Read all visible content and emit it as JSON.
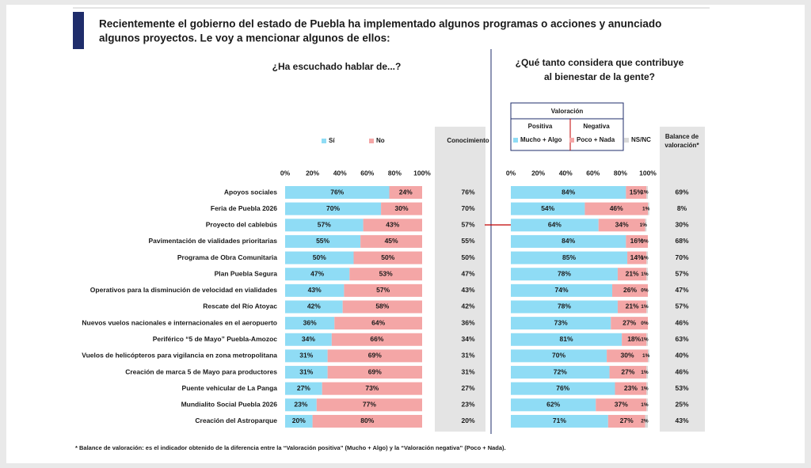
{
  "title": [
    "Recientemente el gobierno del estado de Puebla ha implementado algunos programas o acciones y anunciado",
    "algunos proyectos. Le voy a mencionar algunos de ellos:"
  ],
  "footnote": "* Balance de valoración: es el indicador obtenido de la diferencia entre la “Valoración positiva” (Mucho + Algo) y la “Valoración negativa” (Poco + Nada).",
  "chart_data": [
    {
      "type": "stacked-bar",
      "title": [
        "¿Ha escuchado hablar de...?"
      ],
      "categories": [
        "Apoyos sociales",
        "Feria de Puebla 2026",
        "Proyecto del cablebús",
        "Pavimentación de vialidades prioritarias",
        "Programa de Obra Comunitaria",
        "Plan Puebla Segura",
        "Operativos para la disminución de velocidad en vialidades",
        "Rescate del Río Atoyac",
        "Nuevos vuelos nacionales e internacionales en el aeropuerto",
        "Periférico “5 de Mayo” Puebla-Amozoc",
        "Vuelos de helicópteros para vigilancia en zona metropolitana",
        "Creación de marca 5 de Mayo para productores",
        "Puente vehicular de La Panga",
        "Mundialito Social Puebla 2026",
        "Creación del Astroparque"
      ],
      "series": [
        {
          "name": "Sí",
          "color": "#8fdcf5",
          "values": [
            76,
            70,
            57,
            55,
            50,
            47,
            43,
            42,
            36,
            34,
            31,
            31,
            27,
            23,
            20
          ],
          "value_labels": [
            "76%",
            "70%",
            "57%",
            "55%",
            "50%",
            "47%",
            "43%",
            "42%",
            "36%",
            "34%",
            "31%",
            "31%",
            "27%",
            "23%",
            "20%"
          ]
        },
        {
          "name": "No",
          "color": "#f4a6a6",
          "values": [
            24,
            30,
            43,
            45,
            50,
            53,
            57,
            58,
            64,
            66,
            69,
            69,
            73,
            77,
            80
          ],
          "value_labels": [
            "24%",
            "30%",
            "43%",
            "45%",
            "50%",
            "53%",
            "57%",
            "58%",
            "64%",
            "66%",
            "69%",
            "69%",
            "73%",
            "77%",
            "80%"
          ]
        }
      ],
      "xlim": [
        0,
        100
      ],
      "xticks": [
        {
          "value": 0,
          "label": "0%"
        },
        {
          "value": 20,
          "label": "20%"
        },
        {
          "value": 40,
          "label": "40%"
        },
        {
          "value": 60,
          "label": "60%"
        },
        {
          "value": 80,
          "label": "80%"
        },
        {
          "value": 100,
          "label": "100%"
        }
      ],
      "summary_column": {
        "name": [
          "Conocimiento"
        ],
        "values": [
          76,
          70,
          57,
          55,
          50,
          47,
          43,
          42,
          36,
          34,
          31,
          31,
          27,
          23,
          20
        ],
        "value_labels": [
          "76%",
          "70%",
          "57%",
          "55%",
          "50%",
          "47%",
          "43%",
          "42%",
          "36%",
          "34%",
          "31%",
          "31%",
          "27%",
          "23%",
          "20%"
        ]
      }
    },
    {
      "type": "stacked-bar",
      "title": [
        "¿Qué tanto considera que contribuye",
        "al bienestar de la gente?"
      ],
      "legend_title": "Valoración",
      "series": [
        {
          "name": "Mucho + Algo",
          "group": "Positiva",
          "color": "#8fdcf5",
          "values": [
            84,
            54,
            64,
            84,
            85,
            78,
            74,
            78,
            73,
            81,
            70,
            72,
            76,
            62,
            71
          ],
          "value_labels": [
            "84%",
            "54%",
            "64%",
            "84%",
            "85%",
            "78%",
            "74%",
            "78%",
            "73%",
            "81%",
            "70%",
            "72%",
            "76%",
            "62%",
            "71%"
          ]
        },
        {
          "name": "Poco + Nada",
          "group": "Negativa",
          "color": "#f4a6a6",
          "values": [
            15,
            46,
            34,
            16,
            14,
            21,
            26,
            21,
            27,
            18,
            30,
            27,
            23,
            37,
            27
          ],
          "value_labels": [
            "15%",
            "46%",
            "34%",
            "16%",
            "14%",
            "21%",
            "26%",
            "21%",
            "27%",
            "18%",
            "30%",
            "27%",
            "23%",
            "37%",
            "27%"
          ]
        },
        {
          "name": "NS/NC",
          "color": "#d9d9d9",
          "values": [
            1,
            1,
            1,
            0,
            1,
            1,
            0,
            1,
            0,
            1,
            1,
            1,
            1,
            1,
            2
          ],
          "value_labels": [
            "1%",
            "1%",
            "1%",
            "0%",
            "1%",
            "1%",
            "0%",
            "1%",
            "0%",
            "1%",
            "1%",
            "1%",
            "1%",
            "1%",
            "2%"
          ]
        }
      ],
      "xlim": [
        0,
        100
      ],
      "xticks": [
        {
          "value": 0,
          "label": "0%"
        },
        {
          "value": 20,
          "label": "20%"
        },
        {
          "value": 40,
          "label": "40%"
        },
        {
          "value": 60,
          "label": "60%"
        },
        {
          "value": 80,
          "label": "80%"
        },
        {
          "value": 100,
          "label": "100%"
        }
      ],
      "summary_column": {
        "name": [
          "Balance de",
          "valoración*"
        ],
        "values": [
          69,
          8,
          30,
          68,
          70,
          57,
          47,
          57,
          46,
          63,
          40,
          46,
          53,
          25,
          43
        ],
        "value_labels": [
          "69%",
          "8%",
          "30%",
          "68%",
          "70%",
          "57%",
          "47%",
          "57%",
          "46%",
          "63%",
          "40%",
          "46%",
          "53%",
          "25%",
          "43%"
        ]
      }
    }
  ]
}
